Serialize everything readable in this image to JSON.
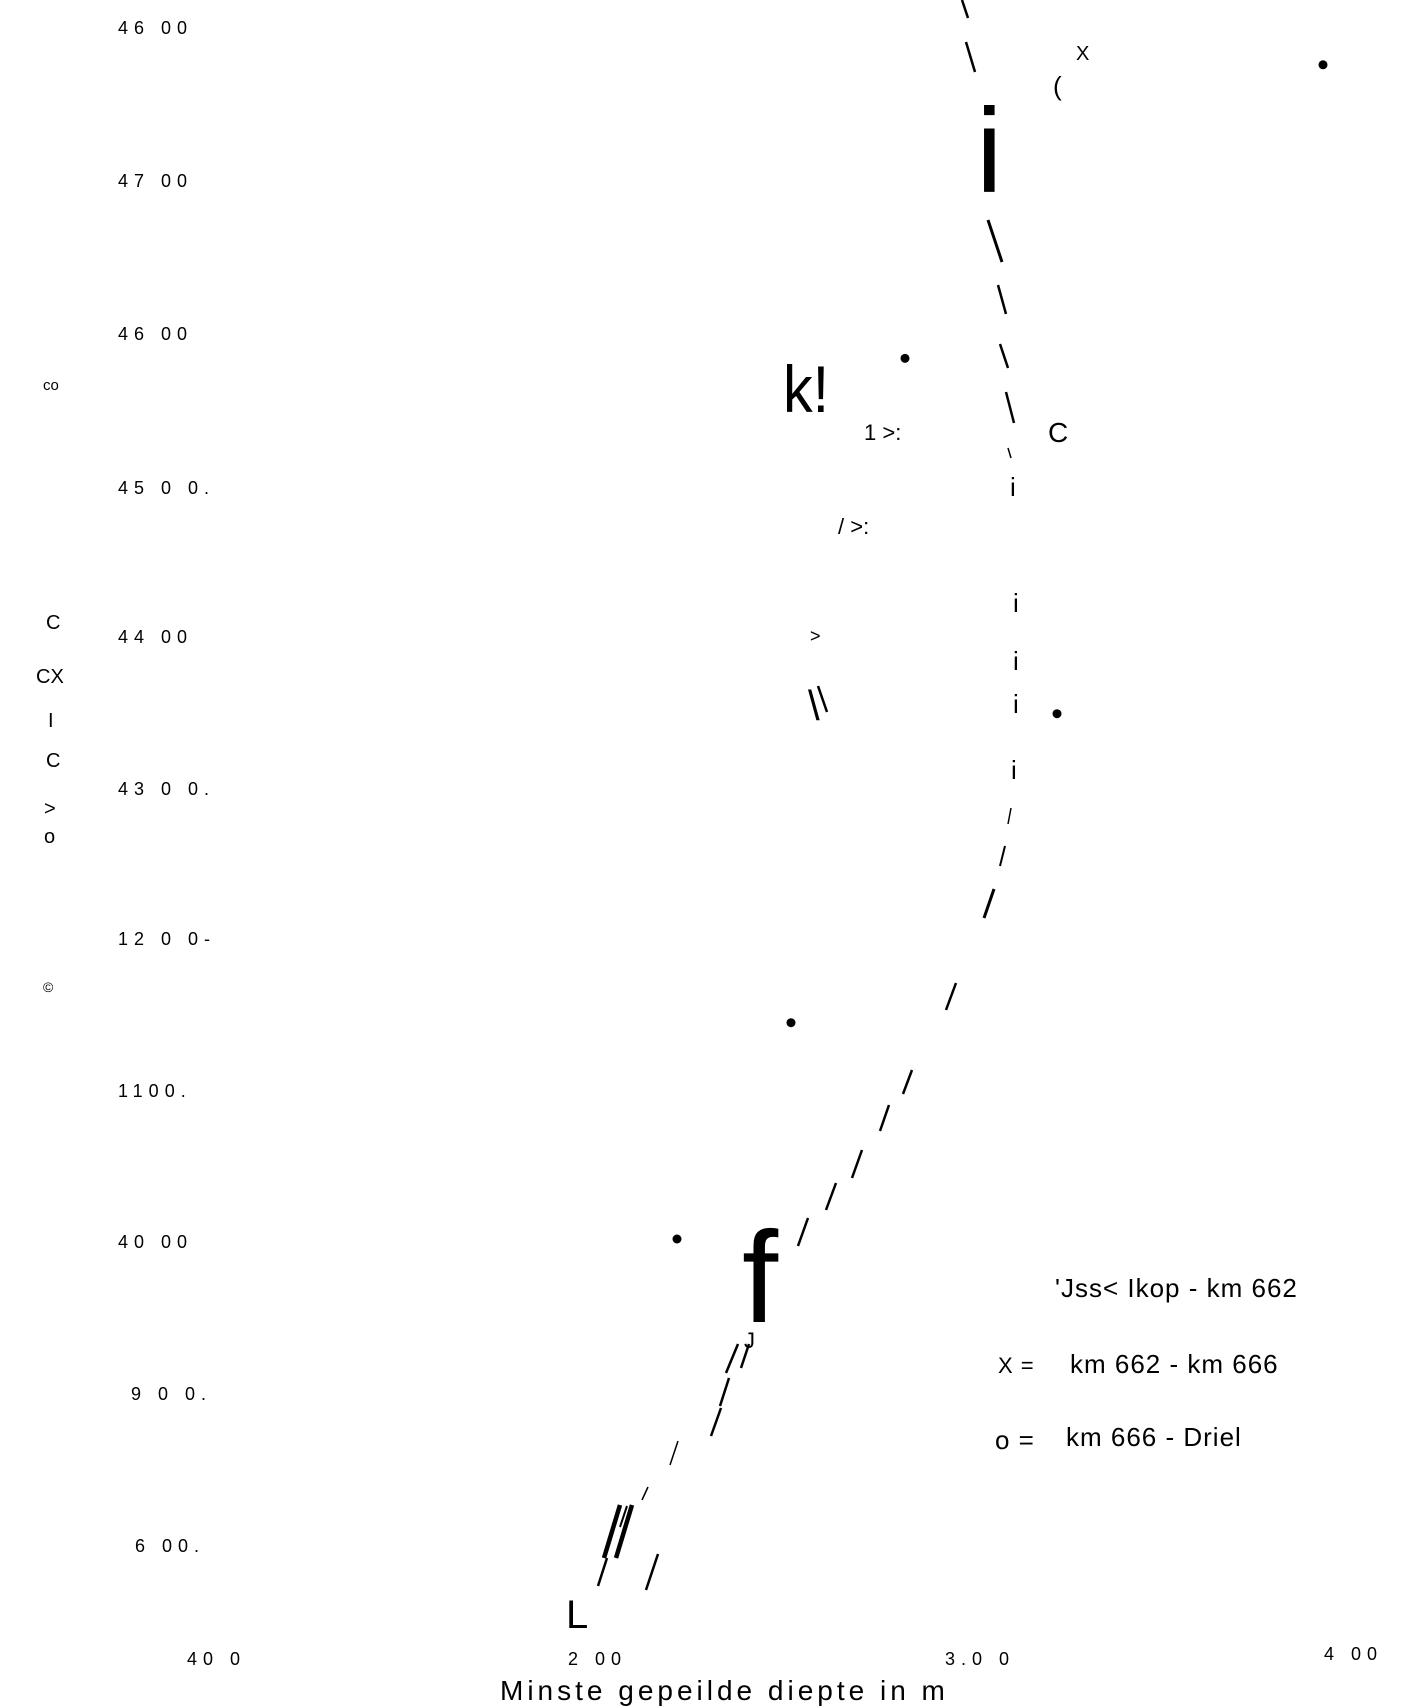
{
  "chart_data": {
    "type": "scatter",
    "title": "",
    "xlabel": "Minste gepeilde diepte in m",
    "ylabel": "",
    "y_tick_labels": [
      "46 00",
      "47 00",
      "46 00",
      "45 0 0.",
      "44 00",
      "43 0 0.",
      "12 0 0-",
      "1100.",
      "40 00",
      "9 0 0.",
      "6 00.",
      "40 0"
    ],
    "x_tick_labels": [
      "2 00",
      "3.0 0",
      "4 00"
    ],
    "side_text": [
      "co",
      "C",
      "CX",
      "I",
      "C",
      ">",
      "o",
      "©"
    ],
    "legend": [
      {
        "symbol": "",
        "text": "'Jss< Ikop - km 662"
      },
      {
        "symbol": "X =",
        "text": "km 662 - km 666"
      },
      {
        "symbol": "o =",
        "text": "km 666 - Driel"
      }
    ],
    "annotations": [
      "i",
      "k!",
      "1 >:",
      "/ >:",
      ">",
      "\\",
      "C",
      "(",
      "X",
      "i",
      "i",
      "i",
      "i",
      "i",
      "f",
      "J",
      "L"
    ],
    "series": [
      {
        "values": [
          [
            2.3,
            3800
          ],
          [
            2.6,
            3940
          ],
          [
            3.3,
            4140
          ],
          [
            2.9,
            4370
          ],
          [
            4.0,
            4560
          ]
        ]
      }
    ],
    "grid": false
  }
}
